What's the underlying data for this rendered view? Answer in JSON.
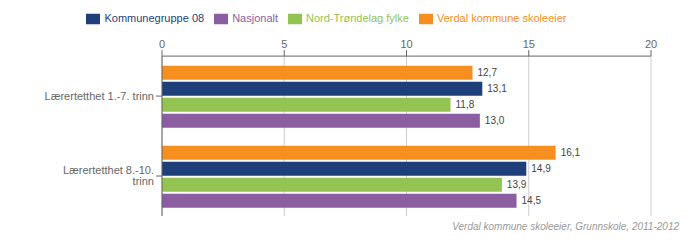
{
  "chart_data": {
    "type": "bar",
    "orientation": "horizontal",
    "categories": [
      "Lærertetthet 1.-7. trinn",
      "Lærertetthet 8.-10. trinn"
    ],
    "series": [
      {
        "name": "Verdal kommune skoleeier",
        "color": "#F59020",
        "values": [
          12.7,
          16.1
        ],
        "value_labels": [
          "12,7",
          "16,1"
        ]
      },
      {
        "name": "Kommunegruppe 08",
        "color": "#1F3F7A",
        "values": [
          13.1,
          14.9
        ],
        "value_labels": [
          "13,1",
          "14,9"
        ]
      },
      {
        "name": "Nord-Trøndelag fylke",
        "color": "#92C353",
        "values": [
          11.8,
          13.9
        ],
        "value_labels": [
          "11,8",
          "13,9"
        ]
      },
      {
        "name": "Nasjonalt",
        "color": "#8B5EA2",
        "values": [
          13.0,
          14.5
        ],
        "value_labels": [
          "13,0",
          "14,5"
        ]
      }
    ],
    "xlim": [
      0,
      20
    ],
    "xticks": [
      0,
      5,
      10,
      15,
      20
    ],
    "grid": true,
    "legend": "top",
    "data_labels": true,
    "annotations": [
      "Verdal kommune skoleeier, Grunnskole, 2011-2012"
    ]
  }
}
